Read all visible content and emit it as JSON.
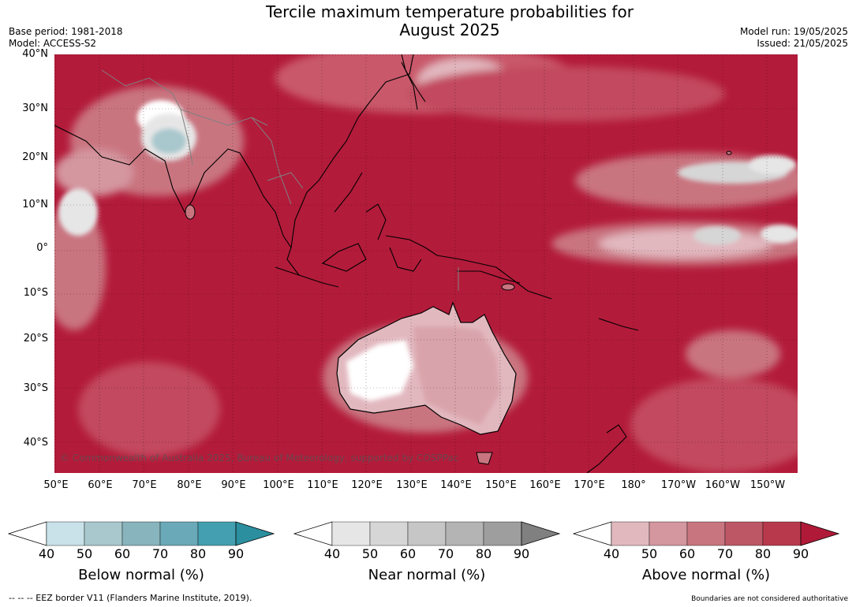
{
  "header": {
    "title_line1": "Tercile maximum temperature probabilities for",
    "title_line2": "August 2025",
    "base_period": "Base period: 1981-2018",
    "model": "Model: ACCESS-S2",
    "model_run": "Model run: 19/05/2025",
    "issued": "Issued: 21/05/2025"
  },
  "map": {
    "lat_labels": [
      "40°N",
      "30°N",
      "20°N",
      "10°N",
      "0°",
      "10°S",
      "20°S",
      "30°S",
      "40°S"
    ],
    "lon_labels": [
      "50°E",
      "60°E",
      "70°E",
      "80°E",
      "90°E",
      "100°E",
      "110°E",
      "120°E",
      "130°E",
      "140°E",
      "150°E",
      "160°E",
      "170°E",
      "180°",
      "170°W",
      "160°W",
      "150°W"
    ],
    "copyright": "© Commonwealth of Australia 2025, Bureau of Meteorology, supported by COSPPac",
    "colors": {
      "ocean_above": "#b31b3a",
      "land_outline": "#000000",
      "border": "#808080"
    }
  },
  "colorbars": [
    {
      "label": "Below normal (%)",
      "ticks": [
        "40",
        "50",
        "60",
        "70",
        "80",
        "90"
      ],
      "colors": [
        "#ffffff",
        "#c9e1e8",
        "#a8c8cd",
        "#88b4bd",
        "#6aa9b8",
        "#44a0b0",
        "#2b8f9f"
      ]
    },
    {
      "label": "Near normal (%)",
      "ticks": [
        "40",
        "50",
        "60",
        "70",
        "80",
        "90"
      ],
      "colors": [
        "#ffffff",
        "#e6e6e6",
        "#d6d6d6",
        "#c6c6c6",
        "#b4b4b4",
        "#9e9e9e",
        "#808080"
      ]
    },
    {
      "label": "Above normal (%)",
      "ticks": [
        "40",
        "50",
        "60",
        "70",
        "80",
        "90"
      ],
      "colors": [
        "#ffffff",
        "#e2b8bf",
        "#d4969f",
        "#c97580",
        "#bd5766",
        "#b8394c",
        "#b01a38"
      ]
    }
  ],
  "footer": {
    "eez": "-- -- -- EEZ border V11 (Flanders Marine Institute, 2019).",
    "boundaries": "Boundaries are not considered authoritative"
  }
}
